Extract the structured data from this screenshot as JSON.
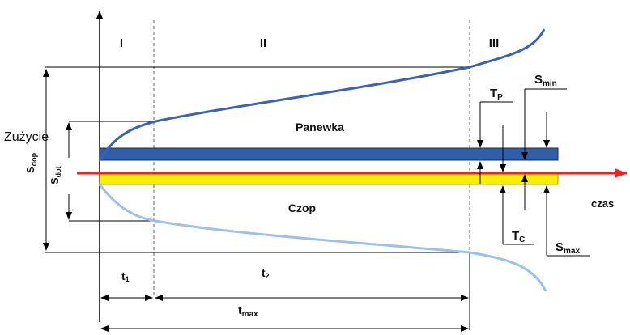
{
  "regions": {
    "I": "I",
    "II": "II",
    "III": "III"
  },
  "labels": {
    "zuzycie": "Zużycie",
    "s_dop_main": "S",
    "s_dop_sub": "dop",
    "s_dot_main": "S",
    "s_dot_sub": "dot",
    "panewka": "Panewka",
    "czop": "Czop",
    "czas": "czas",
    "t1_main": "t",
    "t1_sub": "1",
    "t2_main": "t",
    "t2_sub": "2",
    "tmax_main": "t",
    "tmax_sub": "max",
    "tp_main": "T",
    "tp_sub": "P",
    "tc_main": "T",
    "tc_sub": "C",
    "smin_main": "S",
    "smin_sub": "min",
    "smax_main": "S",
    "smax_sub": "max"
  },
  "colors": {
    "upper_curve": "#3a63b0",
    "lower_curve": "#9cc0e8",
    "panewka_bar": "#2f5fa8",
    "czop_bar": "#f5f000",
    "time_axis": "#e8261e"
  }
}
